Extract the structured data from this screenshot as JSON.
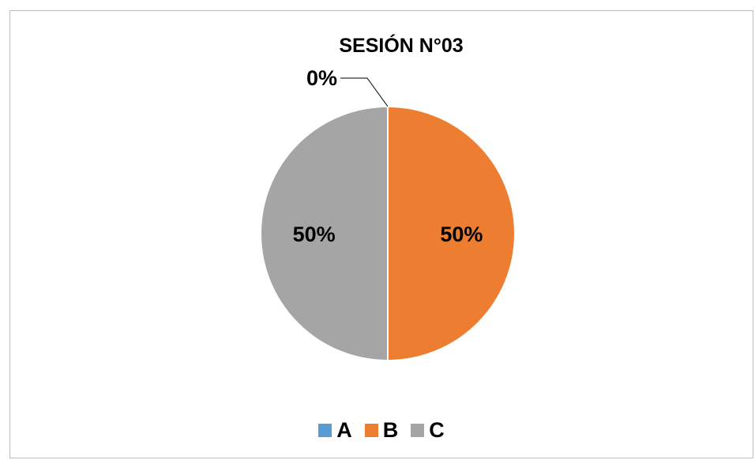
{
  "chart_data": {
    "type": "pie",
    "title": "SESIÓN N°03",
    "categories": [
      "A",
      "B",
      "C"
    ],
    "values": [
      0,
      50,
      50
    ],
    "data_labels": [
      "0%",
      "50%",
      "50%"
    ],
    "colors": [
      "#5b9bd5",
      "#ed7d31",
      "#a5a5a5"
    ],
    "legend_position": "bottom"
  }
}
